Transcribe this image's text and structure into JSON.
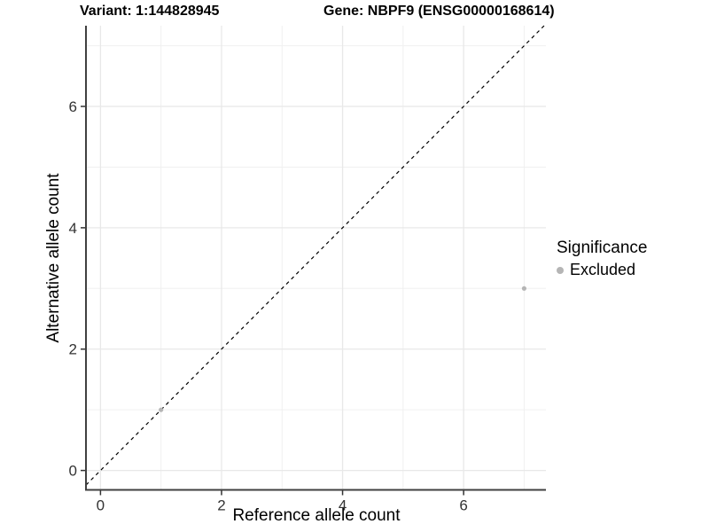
{
  "titles": {
    "left": "Variant: 1:144828945",
    "right": "Gene: NBPF9 (ENSG00000168614)"
  },
  "chart_data": {
    "type": "scatter",
    "xlabel": "Reference allele count",
    "ylabel": "Alternative allele count",
    "xlim": [
      -0.24,
      7.36
    ],
    "ylim": [
      -0.32,
      7.33
    ],
    "x_major_ticks": [
      0,
      2,
      4,
      6
    ],
    "y_major_ticks": [
      0,
      2,
      4,
      6
    ],
    "x_minor_ticks": [
      1,
      3,
      5,
      7
    ],
    "y_minor_ticks": [
      1,
      3,
      5,
      7
    ],
    "grid": true,
    "points": [
      {
        "x": 1,
        "y": 1,
        "series": "Excluded"
      },
      {
        "x": 7,
        "y": 3,
        "series": "Excluded"
      }
    ],
    "reference_line": {
      "kind": "identity",
      "slope": 1,
      "intercept": 0,
      "linestyle": "dashed",
      "color": "#000000"
    },
    "legend": {
      "title": "Significance",
      "position": "right",
      "items": [
        {
          "label": "Excluded",
          "color": "#b5b5b5"
        }
      ]
    },
    "colors": {
      "point_excluded": "#b5b5b5",
      "grid_major": "#e8e8e8",
      "grid_minor": "#f0f0f0",
      "axis_line": "#404040",
      "tick_mark": "#333333",
      "tick_label": "#333333"
    }
  }
}
